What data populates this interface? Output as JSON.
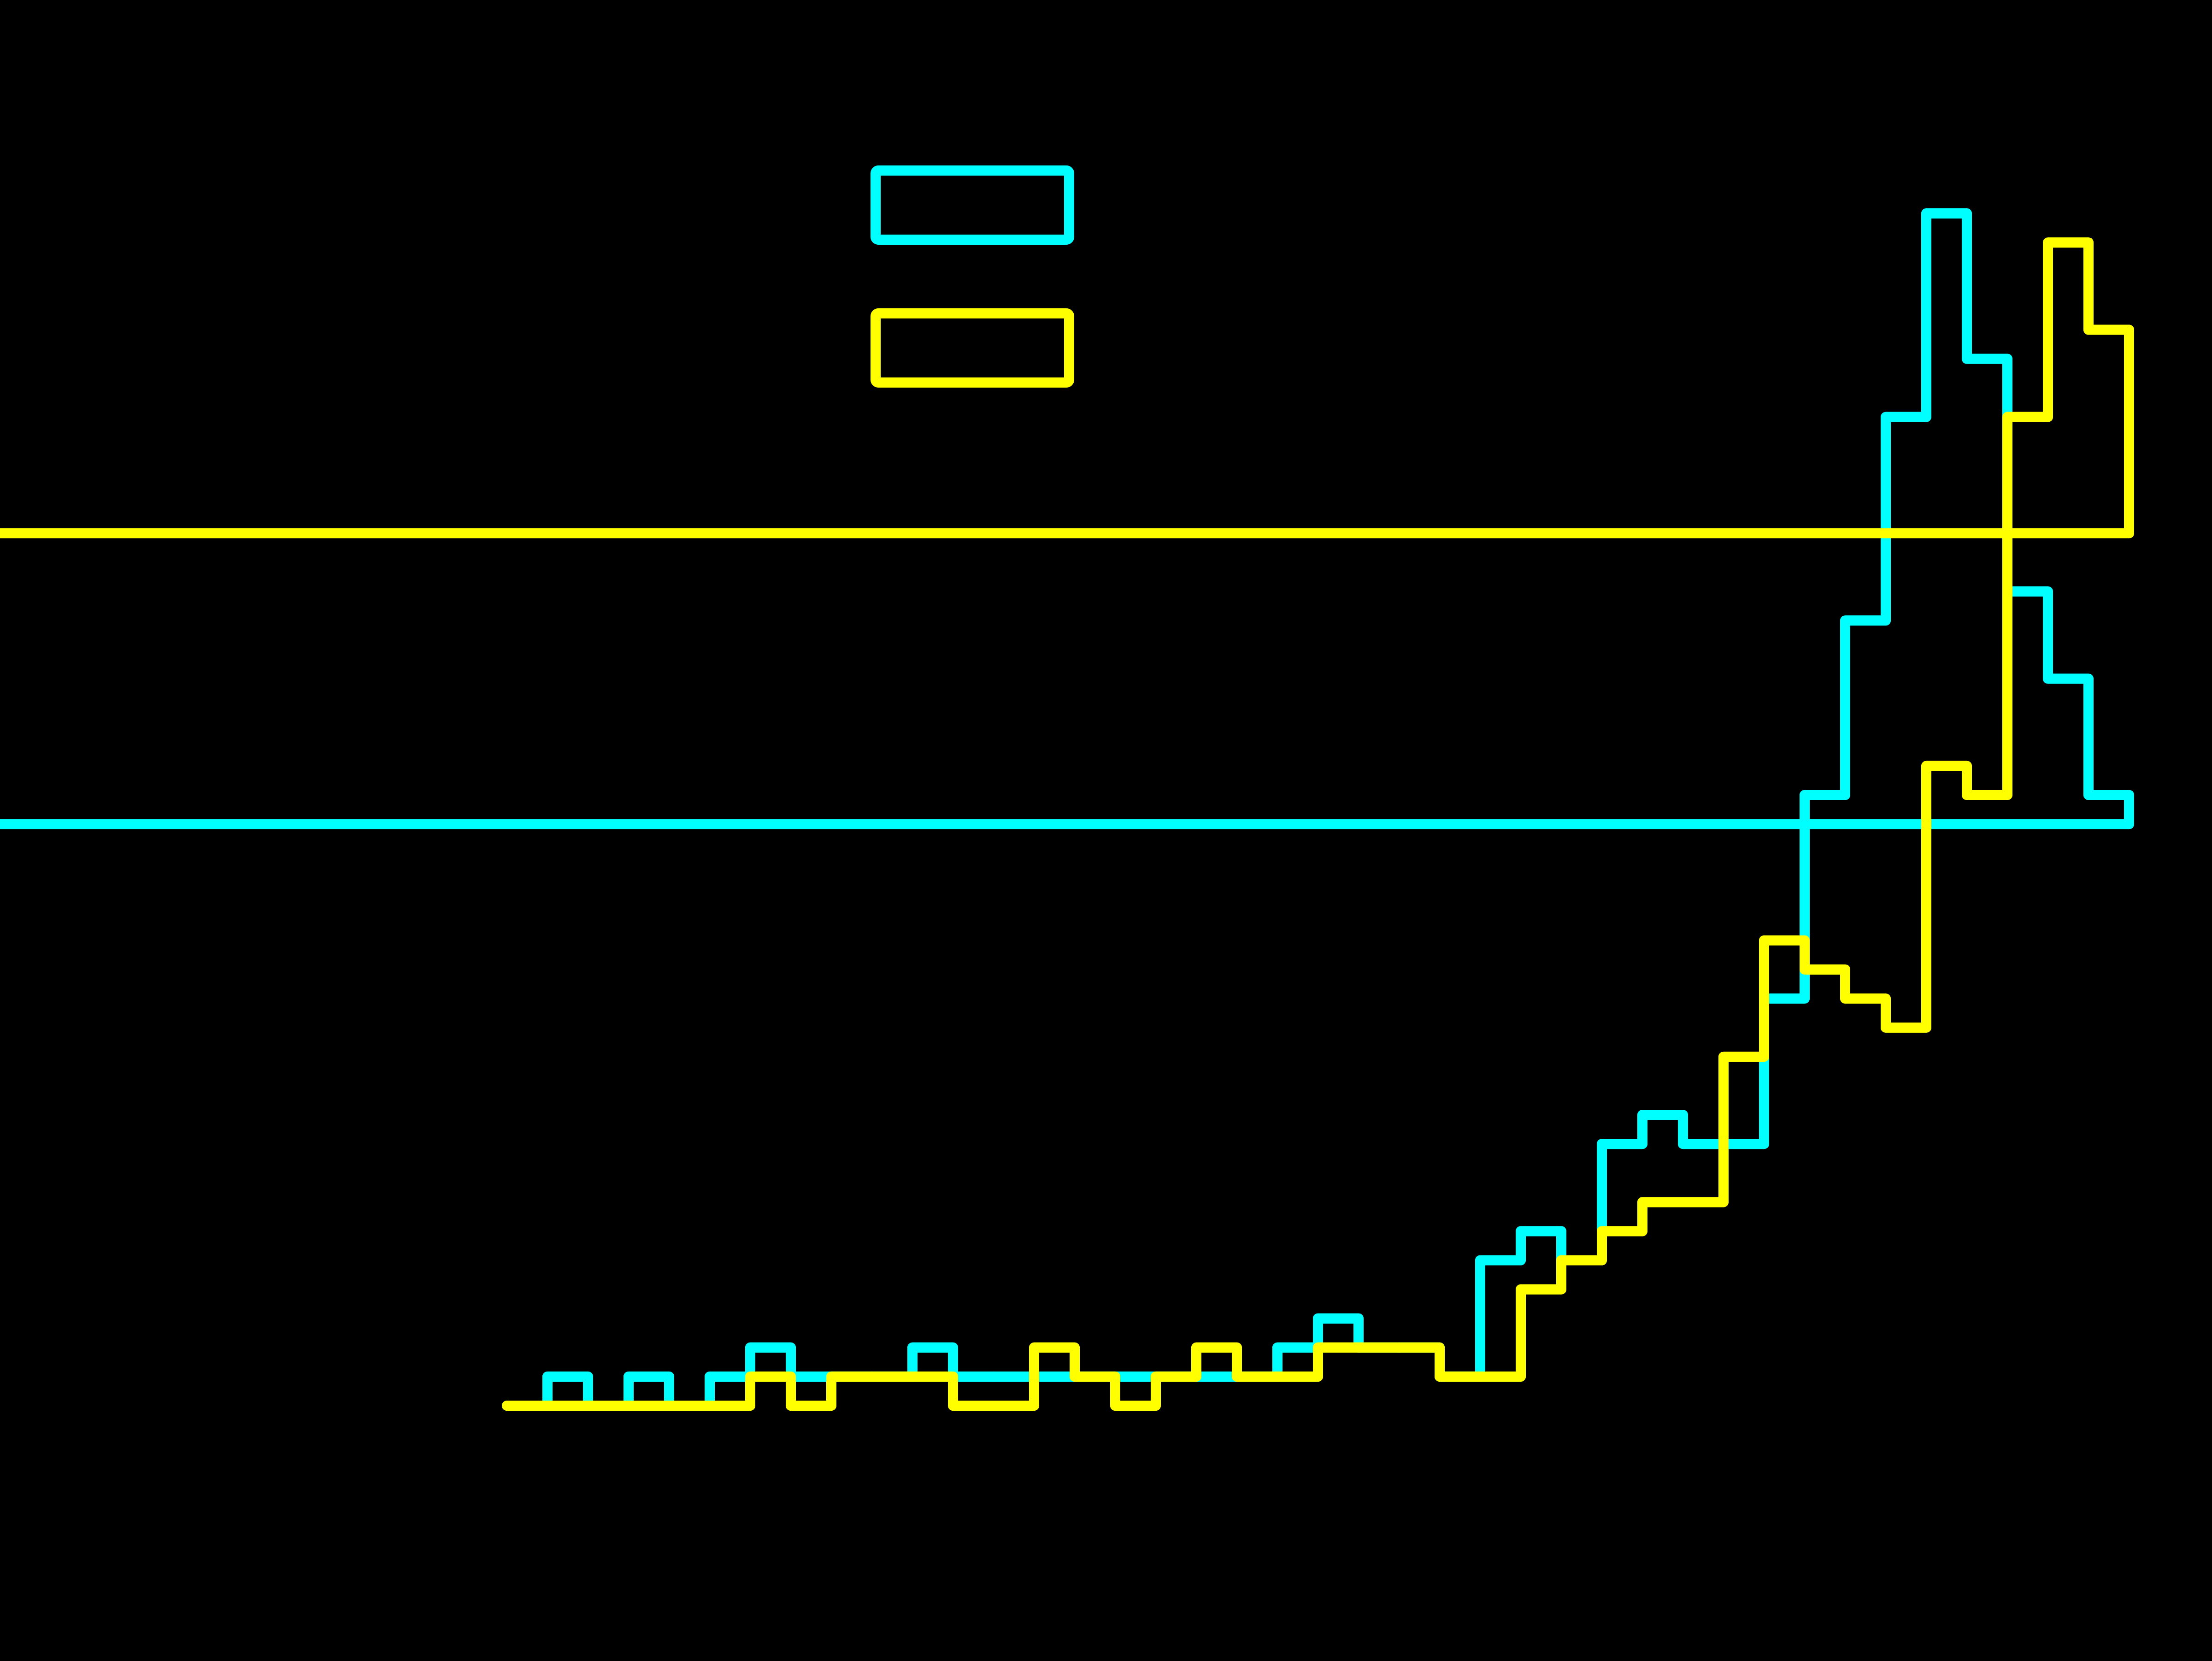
{
  "chart_data": {
    "type": "line",
    "title": "",
    "xlabel": "",
    "ylabel": "",
    "xlim": [
      0,
      40
    ],
    "ylim": [
      0,
      42
    ],
    "grid": false,
    "legend": {
      "placement": "top-center",
      "entries": [
        {
          "series_index": 0,
          "label": ""
        },
        {
          "series_index": 1,
          "label": ""
        }
      ]
    },
    "series": [
      {
        "color": "#00ffff",
        "edges": [
          0,
          1,
          2,
          3,
          4,
          5,
          6,
          7,
          8,
          9,
          10,
          11,
          12,
          13,
          14,
          15,
          16,
          17,
          18,
          19,
          20,
          21,
          22,
          23,
          24,
          25,
          26,
          27,
          28,
          29,
          30,
          31,
          32,
          33,
          34,
          35,
          36,
          37,
          38,
          39,
          40
        ],
        "values": [
          0,
          1,
          0,
          1,
          0,
          1,
          2,
          1,
          1,
          1,
          2,
          1,
          1,
          1,
          1,
          1,
          1,
          1,
          1,
          2,
          3,
          2,
          2,
          1,
          5,
          6,
          5,
          9,
          10,
          9,
          9,
          14,
          21,
          27,
          34,
          41,
          36,
          28,
          25,
          21,
          20
        ]
      },
      {
        "color": "#ffff00",
        "edges": [
          0,
          1,
          2,
          3,
          4,
          5,
          6,
          7,
          8,
          9,
          10,
          11,
          12,
          13,
          14,
          15,
          16,
          17,
          18,
          19,
          20,
          21,
          22,
          23,
          24,
          25,
          26,
          27,
          28,
          29,
          30,
          31,
          32,
          33,
          34,
          35,
          36,
          37,
          38,
          39,
          40
        ],
        "values": [
          0,
          0,
          0,
          0,
          0,
          0,
          1,
          0,
          1,
          1,
          1,
          0,
          0,
          2,
          1,
          0,
          1,
          2,
          1,
          1,
          2,
          2,
          2,
          1,
          1,
          4,
          5,
          6,
          7,
          7,
          12,
          16,
          15,
          14,
          13,
          22,
          21,
          34,
          40,
          37,
          30
        ]
      }
    ]
  }
}
